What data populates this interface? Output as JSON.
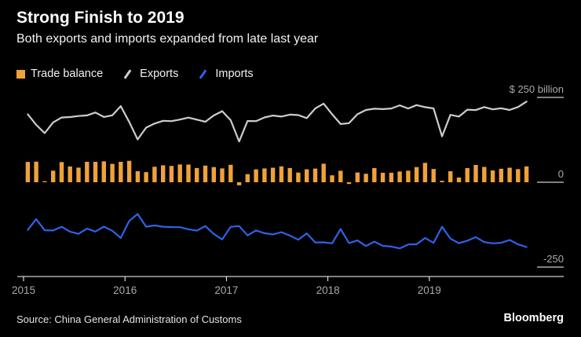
{
  "colors": {
    "background": "#000000",
    "trade_balance": "#efa13b",
    "exports": "#cdcdcd",
    "imports": "#2f62e8",
    "axis_text": "#a9a9a9",
    "axis_line": "#ffffff"
  },
  "footer": {
    "source": "Source: China General Administration of Customs",
    "brand": "Bloomberg"
  },
  "chart_data": {
    "type": "line",
    "title": "Strong Finish to 2019",
    "subtitle": "Both exports and imports expanded from late last year",
    "frequency": "monthly",
    "ylim": [
      -250,
      250
    ],
    "grid": false,
    "legend_position": "top",
    "yticks": [
      {
        "value": 250,
        "label": "$ 250 billion"
      },
      {
        "value": 0,
        "label": "0"
      },
      {
        "value": -250,
        "label": "-250"
      }
    ],
    "x_ticks": [
      {
        "index": 0,
        "label": "2015"
      },
      {
        "index": 12,
        "label": "2016"
      },
      {
        "index": 24,
        "label": "2017"
      },
      {
        "index": 36,
        "label": "2018"
      },
      {
        "index": 48,
        "label": "2019"
      }
    ],
    "categories": [
      "2015-01",
      "2015-02",
      "2015-03",
      "2015-04",
      "2015-05",
      "2015-06",
      "2015-07",
      "2015-08",
      "2015-09",
      "2015-10",
      "2015-11",
      "2015-12",
      "2016-01",
      "2016-02",
      "2016-03",
      "2016-04",
      "2016-05",
      "2016-06",
      "2016-07",
      "2016-08",
      "2016-09",
      "2016-10",
      "2016-11",
      "2016-12",
      "2017-01",
      "2017-02",
      "2017-03",
      "2017-04",
      "2017-05",
      "2017-06",
      "2017-07",
      "2017-08",
      "2017-09",
      "2017-10",
      "2017-11",
      "2017-12",
      "2018-01",
      "2018-02",
      "2018-03",
      "2018-04",
      "2018-05",
      "2018-06",
      "2018-07",
      "2018-08",
      "2018-09",
      "2018-10",
      "2018-11",
      "2018-12",
      "2019-01",
      "2019-02",
      "2019-03",
      "2019-04",
      "2019-05",
      "2019-06",
      "2019-07",
      "2019-08",
      "2019-09",
      "2019-10",
      "2019-11",
      "2019-12"
    ],
    "series": [
      {
        "name": "Trade balance",
        "type": "bar",
        "color": "#efa13b",
        "values": [
          60,
          60.6,
          3.1,
          34.1,
          59.5,
          46.5,
          43,
          60.2,
          60.3,
          61.6,
          54.1,
          60.1,
          63.3,
          32.6,
          29.9,
          45.6,
          50,
          48.1,
          52.3,
          52,
          42,
          49.1,
          44.6,
          40.8,
          51.3,
          -9.1,
          23.9,
          38,
          40.8,
          42.8,
          46.7,
          42,
          28.5,
          38.2,
          40.2,
          54.7,
          20.3,
          33.7,
          -5,
          28.8,
          24.9,
          41.6,
          28.1,
          27.9,
          31.7,
          34,
          44.7,
          57.1,
          39.2,
          4.1,
          32.6,
          13.8,
          41.7,
          51,
          45.1,
          34.8,
          39.7,
          42.8,
          38.7,
          46.8
        ]
      },
      {
        "name": "Exports",
        "type": "line",
        "color": "#cdcdcd",
        "values": [
          200.3,
          169.2,
          144.6,
          176.3,
          190.7,
          192.1,
          195.1,
          196.9,
          205.6,
          192.4,
          197.2,
          224.2,
          177.5,
          126.2,
          160.9,
          172.9,
          181.1,
          180.2,
          184.7,
          190.6,
          184.5,
          178.2,
          196.8,
          209.4,
          182.8,
          120.1,
          180.6,
          180,
          191,
          196.6,
          193.6,
          199.2,
          198,
          188.9,
          217.4,
          231.8,
          200.5,
          171.6,
          174.1,
          200.4,
          212.9,
          216.7,
          215.5,
          217.4,
          226.7,
          217.3,
          227.4,
          221.3,
          217.6,
          135.2,
          198.7,
          193.5,
          213.9,
          212.8,
          221.6,
          214.8,
          218.1,
          212.9,
          221.7,
          237.7
        ]
      },
      {
        "name": "Imports",
        "type": "line",
        "color": "#2f62e8",
        "values": [
          -140.3,
          -108.6,
          -141.5,
          -142.2,
          -131.2,
          -145.6,
          -152.1,
          -136.7,
          -145.3,
          -130.8,
          -143.1,
          -164.1,
          -114.2,
          -93.6,
          -131,
          -127.3,
          -131.1,
          -132.1,
          -132.4,
          -138.6,
          -142.5,
          -129.1,
          -152.2,
          -168.6,
          -131.5,
          -129.2,
          -156.7,
          -142,
          -150.2,
          -153.8,
          -146.9,
          -157.2,
          -169.5,
          -150.7,
          -177.2,
          -177.1,
          -180.2,
          -137.9,
          -179.1,
          -171.6,
          -188,
          -175.1,
          -187.4,
          -189.5,
          -195,
          -183.3,
          -182.7,
          -164.2,
          -178.4,
          -131.1,
          -166.1,
          -179.7,
          -172.2,
          -161.8,
          -176.5,
          -180,
          -178.4,
          -170.1,
          -183,
          -190.9
        ]
      }
    ]
  }
}
